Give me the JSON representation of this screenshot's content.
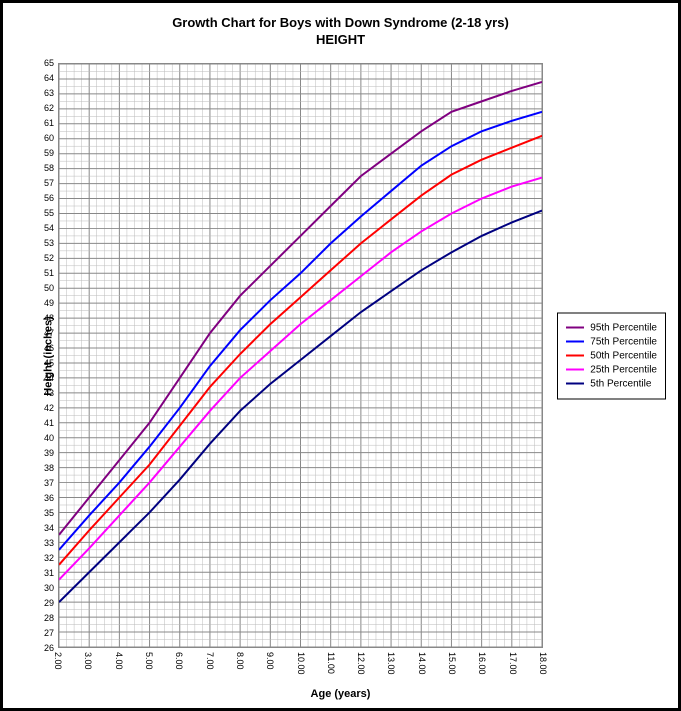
{
  "chart": {
    "type": "line",
    "title_line1": "Growth Chart for Boys with Down Syndrome (2-18 yrs)",
    "title_line2": "HEIGHT",
    "title_fontsize": 13,
    "xlabel": "Age (years)",
    "ylabel": "Height (inches)",
    "label_fontsize": 11,
    "tick_fontsize": 9,
    "background_color": "#ffffff",
    "border_color": "#000000",
    "grid_major_color": "#888888",
    "grid_minor_color": "#bbbbbb",
    "line_width": 2,
    "xlim": [
      2,
      18
    ],
    "ylim": [
      26,
      65
    ],
    "xtick_step": 1,
    "ytick_step": 1,
    "x_minor_per_major": 4,
    "y_minor_per_major": 2,
    "xtick_format": "fixed2",
    "xtick_rotation": 90,
    "x_values": [
      2,
      3,
      4,
      5,
      6,
      7,
      8,
      9,
      10,
      11,
      12,
      13,
      14,
      15,
      16,
      17,
      18
    ],
    "series": [
      {
        "name": "95th Percentile",
        "color": "#800080",
        "values": [
          33.5,
          36.0,
          38.5,
          41.0,
          44.0,
          47.0,
          49.5,
          51.5,
          53.5,
          55.5,
          57.5,
          59.0,
          60.5,
          61.8,
          62.5,
          63.2,
          63.8
        ]
      },
      {
        "name": "75th Percentile",
        "color": "#0000ff",
        "values": [
          32.5,
          34.8,
          37.0,
          39.4,
          42.0,
          44.8,
          47.2,
          49.2,
          51.0,
          53.0,
          54.8,
          56.5,
          58.2,
          59.5,
          60.5,
          61.2,
          61.8
        ]
      },
      {
        "name": "50th Percentile",
        "color": "#ff0000",
        "values": [
          31.5,
          33.8,
          36.0,
          38.2,
          40.8,
          43.4,
          45.6,
          47.6,
          49.4,
          51.2,
          53.0,
          54.6,
          56.2,
          57.6,
          58.6,
          59.4,
          60.2
        ]
      },
      {
        "name": "25th Percentile",
        "color": "#ff00ff",
        "values": [
          30.5,
          32.6,
          34.8,
          37.0,
          39.4,
          41.8,
          44.0,
          45.8,
          47.6,
          49.2,
          50.8,
          52.4,
          53.8,
          55.0,
          56.0,
          56.8,
          57.4
        ]
      },
      {
        "name": "5th Percentile",
        "color": "#000080",
        "values": [
          29.0,
          31.0,
          33.0,
          35.0,
          37.2,
          39.6,
          41.8,
          43.6,
          45.2,
          46.8,
          48.4,
          49.8,
          51.2,
          52.4,
          53.5,
          54.4,
          55.2
        ]
      }
    ],
    "legend": {
      "position": "right",
      "border_color": "#000000",
      "fontsize": 10
    }
  }
}
